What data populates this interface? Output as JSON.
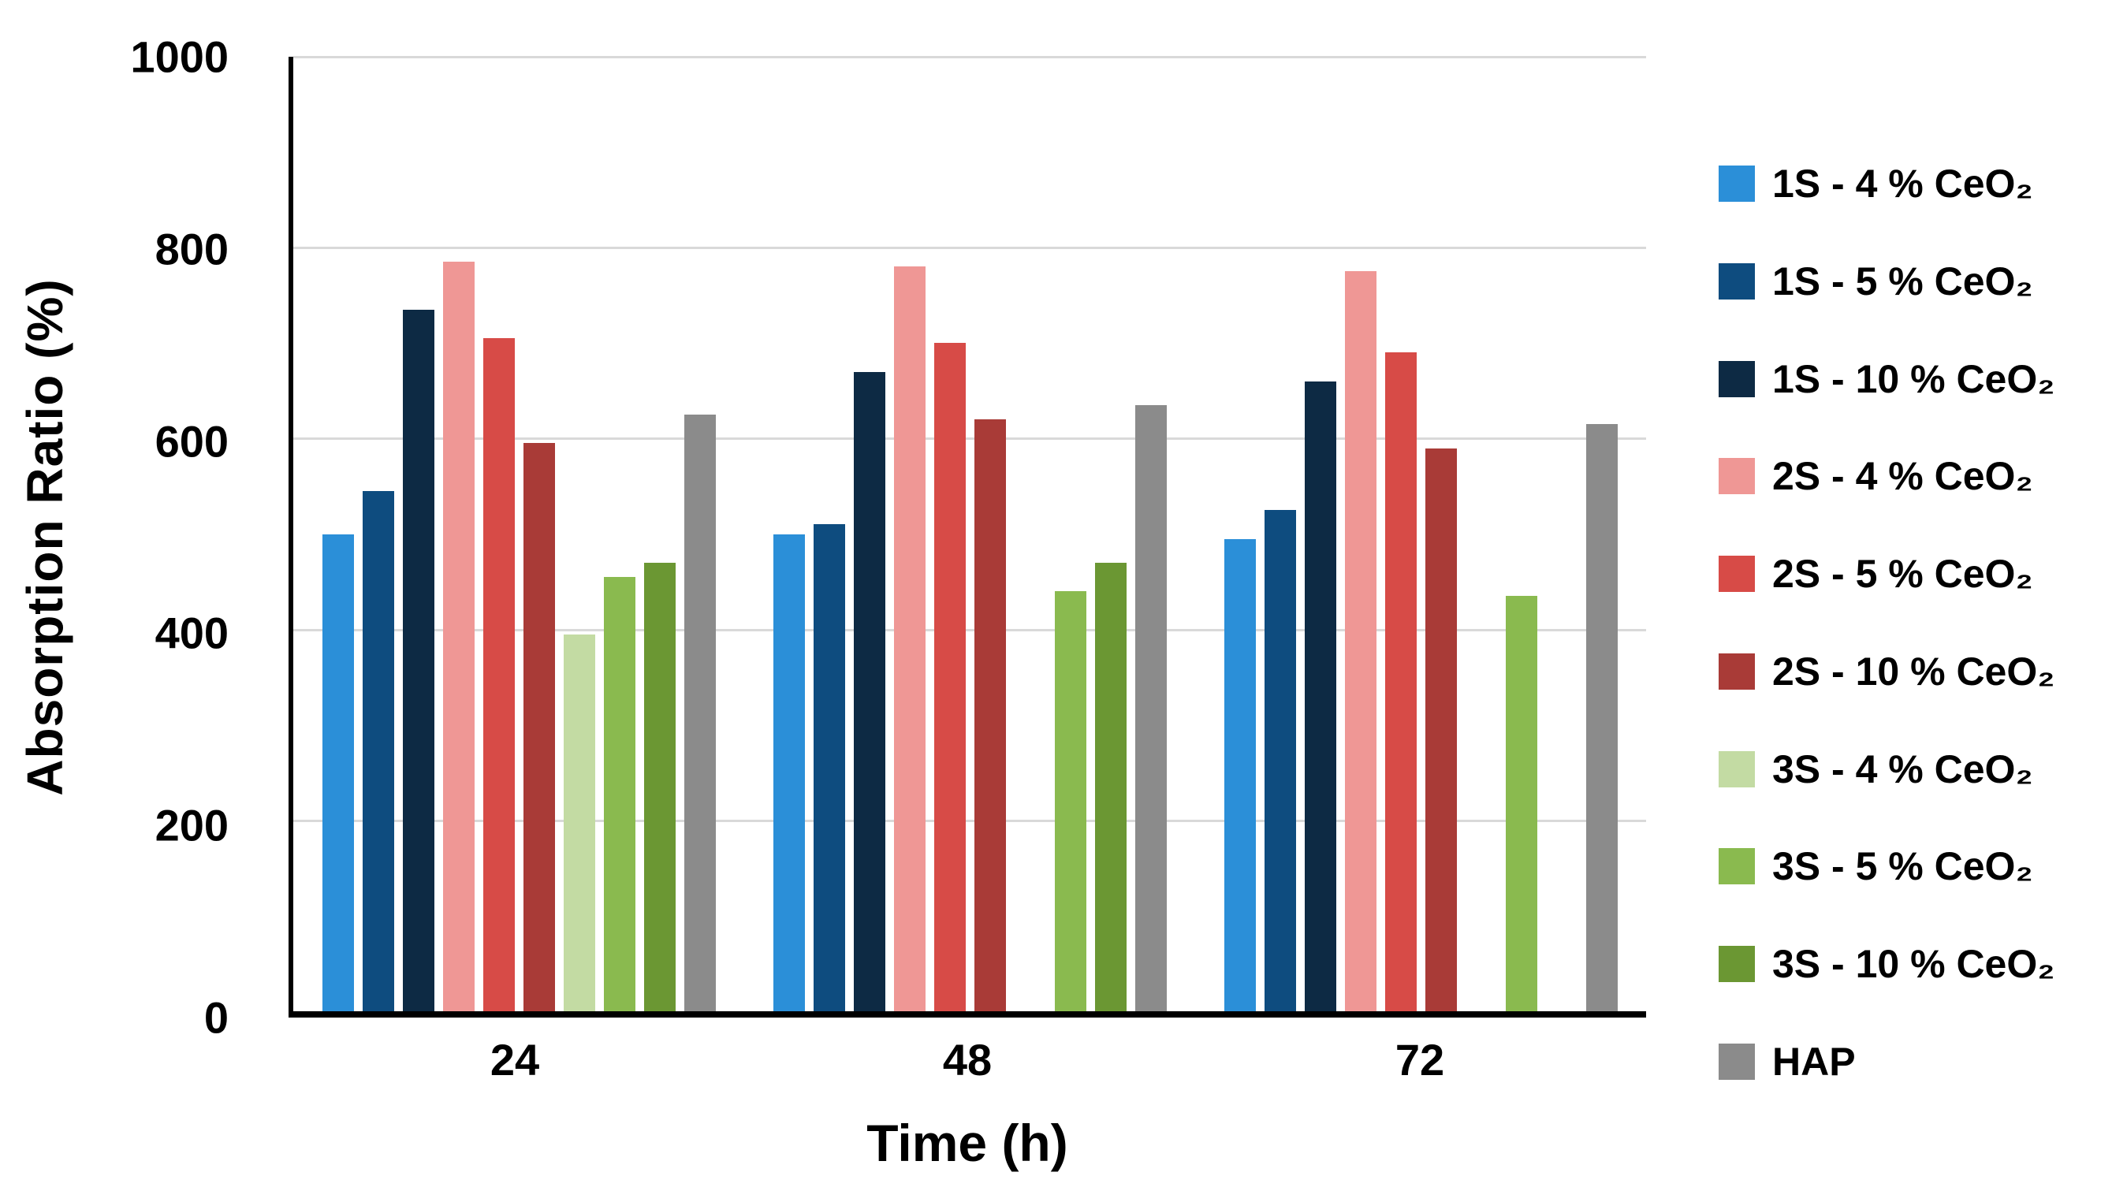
{
  "figure": {
    "background": "#ffffff",
    "axis_color": "#000000",
    "gridline_color": "#d9d9d9",
    "text_color": "#000000"
  },
  "chart_data": {
    "type": "bar",
    "title": "",
    "ylabel": "Absorption Ratio (%)",
    "xlabel": "Time (h)",
    "ylim": [
      0,
      1000
    ],
    "yticks": [
      0,
      200,
      400,
      600,
      800,
      1000
    ],
    "categories": [
      "24",
      "48",
      "72"
    ],
    "grid": "horizontal",
    "legend_position": "right",
    "series": [
      {
        "name": "1S - 4 % CeO₂",
        "color": "#2b8fd8",
        "values": [
          500,
          500,
          495
        ]
      },
      {
        "name": "1S - 5 % CeO₂",
        "color": "#0e4c7f",
        "values": [
          545,
          510,
          525
        ]
      },
      {
        "name": "1S - 10 % CeO₂",
        "color": "#0d2a44",
        "values": [
          735,
          670,
          660
        ]
      },
      {
        "name": "2S - 4 % CeO₂",
        "color": "#ef9795",
        "values": [
          785,
          780,
          775
        ]
      },
      {
        "name": "2S - 5 % CeO₂",
        "color": "#d74b47",
        "values": [
          705,
          700,
          690
        ]
      },
      {
        "name": "2S - 10 % CeO₂",
        "color": "#a93b37",
        "values": [
          595,
          620,
          590
        ]
      },
      {
        "name": "3S - 4 % CeO₂",
        "color": "#c3dba3",
        "values": [
          395,
          null,
          null
        ]
      },
      {
        "name": "3S - 5 % CeO₂",
        "color": "#8aba4f",
        "values": [
          455,
          440,
          435
        ]
      },
      {
        "name": "3S - 10 % CeO₂",
        "color": "#6b9733",
        "values": [
          470,
          470,
          null
        ]
      },
      {
        "name": "HAP",
        "color": "#8b8b8b",
        "values": [
          625,
          635,
          615
        ]
      }
    ]
  }
}
